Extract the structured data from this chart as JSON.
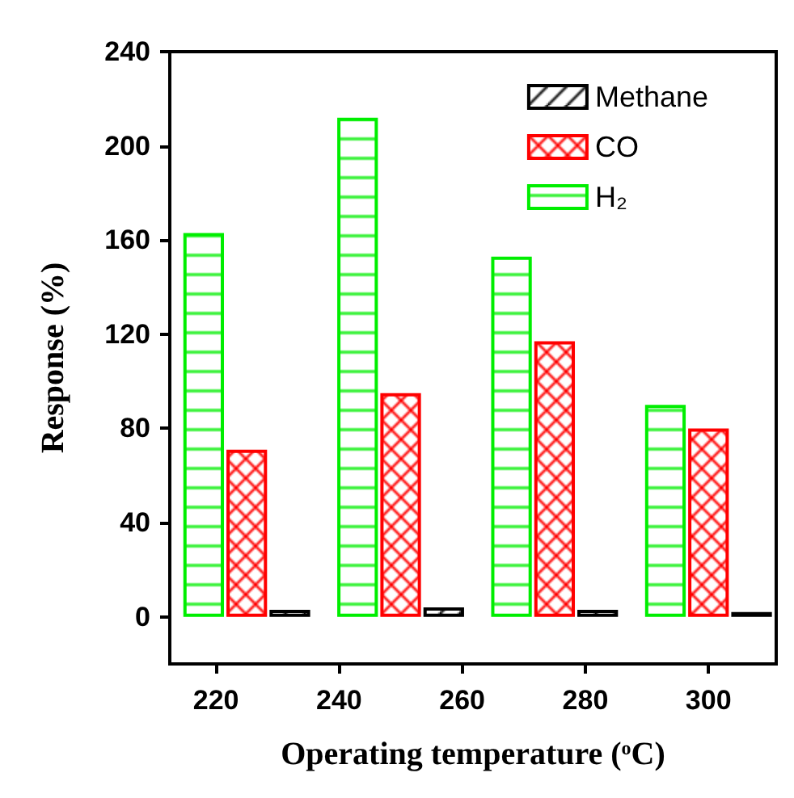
{
  "chart_data": {
    "type": "bar",
    "xlabel": "Operating temperature ($^{o}$C)",
    "ylabel": "Response (%)",
    "xlim": [
      212.5,
      311
    ],
    "xticks": [
      220,
      240,
      260,
      280,
      300
    ],
    "ylim": [
      -20,
      240
    ],
    "yticks": [
      0,
      40,
      80,
      120,
      160,
      200,
      240
    ],
    "series": [
      {
        "name": "Methane",
        "color": "#000000",
        "x": [
          232,
          257,
          282,
          307
        ],
        "values": [
          3,
          4,
          3,
          2
        ]
      },
      {
        "name": "CO",
        "color": "#ff0000",
        "x": [
          225,
          250,
          275,
          300
        ],
        "values": [
          71,
          95,
          117,
          80
        ]
      },
      {
        "name": "H₂",
        "color": "#00ee00",
        "x": [
          218,
          243,
          268,
          293
        ],
        "values": [
          163,
          212,
          153,
          90
        ]
      }
    ],
    "legend": "top right",
    "grid": false
  }
}
